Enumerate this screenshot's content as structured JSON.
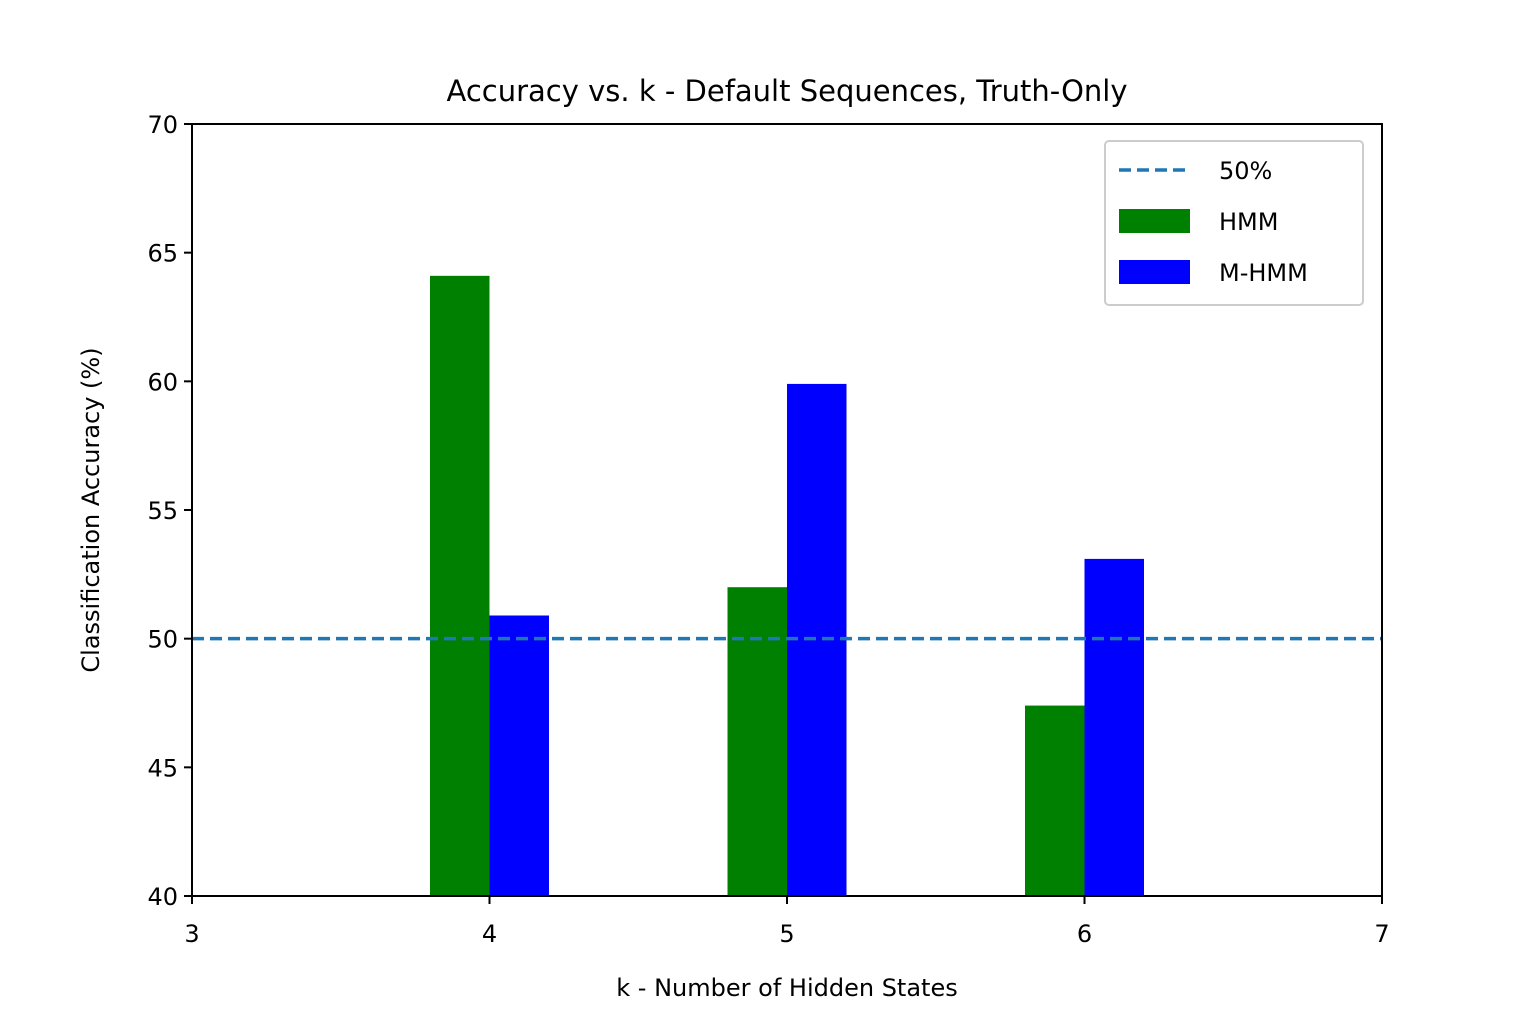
{
  "chart_data": {
    "type": "bar",
    "title": "Accuracy vs. k - Default Sequences, Truth-Only",
    "xlabel": "k - Number of Hidden States",
    "ylabel": "Classification Accuracy (%)",
    "xlim": [
      3,
      7
    ],
    "ylim": [
      40,
      70
    ],
    "xticks": [
      "3",
      "4",
      "5",
      "6",
      "7"
    ],
    "yticks": [
      "40",
      "45",
      "50",
      "55",
      "60",
      "65",
      "70"
    ],
    "categories": [
      4,
      5,
      6
    ],
    "bar_width": 0.2,
    "series": [
      {
        "name": "HMM",
        "color": "#008000",
        "offset": -0.1,
        "values": [
          64.1,
          52.0,
          47.4
        ]
      },
      {
        "name": "M-HMM",
        "color": "#0000ff",
        "offset": 0.1,
        "values": [
          50.9,
          59.9,
          53.1
        ]
      }
    ],
    "reference_line": {
      "name": "50%",
      "y": 50,
      "color": "#1f77b4",
      "style": "dashed"
    },
    "legend": {
      "position": "top-right",
      "entries": [
        "50%",
        "HMM",
        "M-HMM"
      ]
    },
    "grid": false
  }
}
